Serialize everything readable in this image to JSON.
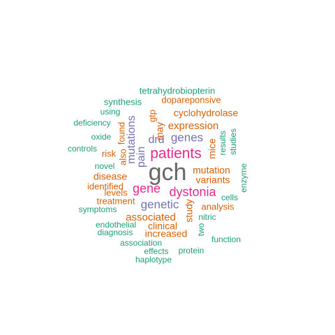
{
  "palette": {
    "teal": "#1b9e77",
    "orange": "#d95f02",
    "purple": "#7570b3",
    "magenta": "#e7298a",
    "gray": "#666666"
  },
  "words": [
    {
      "text": "gch",
      "color": "gray"
    },
    {
      "text": "patients",
      "color": "magenta"
    },
    {
      "text": "dystonia",
      "color": "magenta"
    },
    {
      "text": "gene",
      "color": "magenta"
    },
    {
      "text": "mutations",
      "color": "purple"
    },
    {
      "text": "genetic",
      "color": "purple"
    },
    {
      "text": "genes",
      "color": "purple"
    },
    {
      "text": "drd",
      "color": "purple"
    },
    {
      "text": "pain",
      "color": "purple"
    },
    {
      "text": "expression",
      "color": "orange"
    },
    {
      "text": "cyclohydrolase",
      "color": "orange"
    },
    {
      "text": "associated",
      "color": "orange"
    },
    {
      "text": "mutation",
      "color": "orange"
    },
    {
      "text": "clinical",
      "color": "orange"
    },
    {
      "text": "increased",
      "color": "orange"
    },
    {
      "text": "variants",
      "color": "orange"
    },
    {
      "text": "disease",
      "color": "orange"
    },
    {
      "text": "identified",
      "color": "orange"
    },
    {
      "text": "treatment",
      "color": "orange"
    },
    {
      "text": "analysis",
      "color": "orange"
    },
    {
      "text": "levels",
      "color": "orange"
    },
    {
      "text": "risk",
      "color": "orange"
    },
    {
      "text": "also",
      "color": "orange"
    },
    {
      "text": "found",
      "color": "orange"
    },
    {
      "text": "may",
      "color": "orange"
    },
    {
      "text": "gtp",
      "color": "orange"
    },
    {
      "text": "mice",
      "color": "orange"
    },
    {
      "text": "study",
      "color": "orange"
    },
    {
      "text": "dopareponsive",
      "color": "orange"
    },
    {
      "text": "tetrahydrobiopterin",
      "color": "teal"
    },
    {
      "text": "synthesis",
      "color": "teal"
    },
    {
      "text": "using",
      "color": "teal"
    },
    {
      "text": "deficiency",
      "color": "teal"
    },
    {
      "text": "oxide",
      "color": "teal"
    },
    {
      "text": "controls",
      "color": "teal"
    },
    {
      "text": "novel",
      "color": "teal"
    },
    {
      "text": "results",
      "color": "teal"
    },
    {
      "text": "studies",
      "color": "teal"
    },
    {
      "text": "enzyme",
      "color": "teal"
    },
    {
      "text": "cells",
      "color": "teal"
    },
    {
      "text": "symptoms",
      "color": "teal"
    },
    {
      "text": "nitric",
      "color": "teal"
    },
    {
      "text": "endothelial",
      "color": "teal"
    },
    {
      "text": "two",
      "color": "teal"
    },
    {
      "text": "diagnosis",
      "color": "teal"
    },
    {
      "text": "function",
      "color": "teal"
    },
    {
      "text": "association",
      "color": "teal"
    },
    {
      "text": "effects",
      "color": "teal"
    },
    {
      "text": "protein",
      "color": "teal"
    },
    {
      "text": "haplotype",
      "color": "teal"
    }
  ]
}
